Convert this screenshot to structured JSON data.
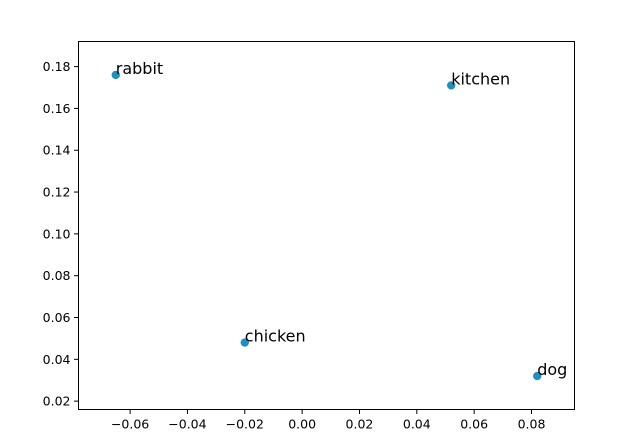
{
  "chart_data": {
    "type": "scatter",
    "title": "",
    "xlabel": "",
    "ylabel": "",
    "xlim": [
      -0.078,
      0.095
    ],
    "ylim": [
      0.016,
      0.192
    ],
    "grid": false,
    "legend": "none",
    "marker_color": "#1f8fc0",
    "x_ticks": [
      {
        "value": -0.06,
        "label": "−0.06"
      },
      {
        "value": -0.04,
        "label": "−0.04"
      },
      {
        "value": -0.02,
        "label": "−0.02"
      },
      {
        "value": 0.0,
        "label": "0.00"
      },
      {
        "value": 0.02,
        "label": "0.02"
      },
      {
        "value": 0.04,
        "label": "0.04"
      },
      {
        "value": 0.06,
        "label": "0.06"
      },
      {
        "value": 0.08,
        "label": "0.08"
      }
    ],
    "y_ticks": [
      {
        "value": 0.02,
        "label": "0.02"
      },
      {
        "value": 0.04,
        "label": "0.04"
      },
      {
        "value": 0.06,
        "label": "0.06"
      },
      {
        "value": 0.08,
        "label": "0.08"
      },
      {
        "value": 0.1,
        "label": "0.10"
      },
      {
        "value": 0.12,
        "label": "0.12"
      },
      {
        "value": 0.14,
        "label": "0.14"
      },
      {
        "value": 0.16,
        "label": "0.16"
      },
      {
        "value": 0.18,
        "label": "0.18"
      }
    ],
    "points": [
      {
        "label": "rabbit",
        "x": -0.065,
        "y": 0.176
      },
      {
        "label": "kitchen",
        "x": 0.052,
        "y": 0.171
      },
      {
        "label": "chicken",
        "x": -0.02,
        "y": 0.048
      },
      {
        "label": "dog",
        "x": 0.082,
        "y": 0.032
      }
    ]
  }
}
